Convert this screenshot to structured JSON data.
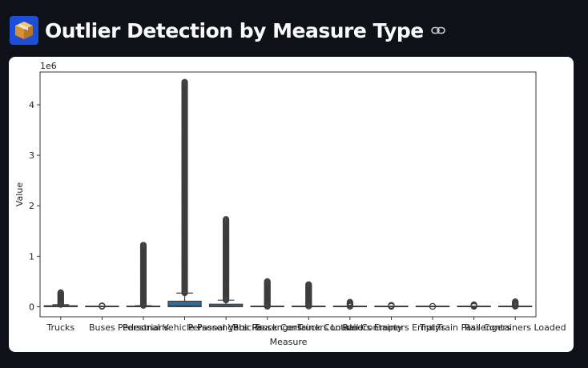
{
  "page": {
    "title": "Outlier Detection by Measure Type",
    "icon": "package-icon",
    "link_icon": "link-icon"
  },
  "chart_data": {
    "type": "box",
    "title": "",
    "xlabel": "Measure",
    "ylabel": "Value",
    "y_scale_label": "1e6",
    "ylim": [
      -0.2,
      4.65
    ],
    "yticks": [
      0,
      1,
      2,
      3,
      4
    ],
    "grid": false,
    "box_color": "#336b99",
    "categories": [
      "Trucks",
      "Buses",
      "Pedestrians",
      "Personal Vehicle Passengers",
      "Personal Vehicles",
      "Bus Passengers",
      "Truck Containers Loaded",
      "Truck Containers Empty",
      "Rail Containers Empty",
      "Trains",
      "Train Passengers",
      "Rail Containers Loaded"
    ],
    "boxes": [
      {
        "q1": 0.0,
        "median": 0.004,
        "q3": 0.02,
        "whisker_high": 0.04,
        "outlier_max": 0.28
      },
      {
        "q1": 0.0,
        "median": 0.0,
        "q3": 0.001,
        "whisker_high": 0.002,
        "outlier_max": 0.02
      },
      {
        "q1": 0.0,
        "median": 0.0,
        "q3": 0.01,
        "whisker_high": 0.02,
        "outlier_max": 1.22
      },
      {
        "q1": 0.0,
        "median": 0.02,
        "q3": 0.11,
        "whisker_high": 0.27,
        "outlier_max": 4.45
      },
      {
        "q1": 0.0,
        "median": 0.01,
        "q3": 0.05,
        "whisker_high": 0.13,
        "outlier_max": 1.73
      },
      {
        "q1": 0.0,
        "median": 0.0,
        "q3": 0.001,
        "whisker_high": 0.003,
        "outlier_max": 0.5
      },
      {
        "q1": 0.0,
        "median": 0.0,
        "q3": 0.003,
        "whisker_high": 0.007,
        "outlier_max": 0.44
      },
      {
        "q1": 0.0,
        "median": 0.0,
        "q3": 0.001,
        "whisker_high": 0.003,
        "outlier_max": 0.09
      },
      {
        "q1": 0.0,
        "median": 0.0,
        "q3": 0.0005,
        "whisker_high": 0.001,
        "outlier_max": 0.03
      },
      {
        "q1": 0.0,
        "median": 0.0,
        "q3": 0.0,
        "whisker_high": 0.0,
        "outlier_max": 0.01
      },
      {
        "q1": 0.0,
        "median": 0.0,
        "q3": 0.0005,
        "whisker_high": 0.001,
        "outlier_max": 0.04
      },
      {
        "q1": 0.0,
        "median": 0.0,
        "q3": 0.002,
        "whisker_high": 0.004,
        "outlier_max": 0.1
      }
    ]
  }
}
